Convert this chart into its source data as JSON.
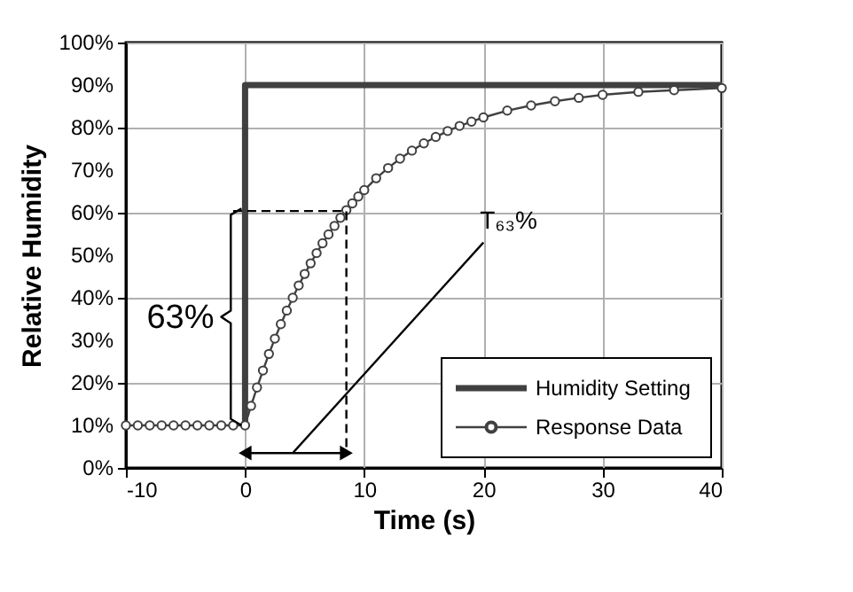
{
  "chart_data": {
    "type": "line",
    "xlabel": "Time (s)",
    "ylabel": "Relative Humidity",
    "xlim": [
      -10,
      40
    ],
    "xticks": [
      -10,
      0,
      10,
      20,
      30,
      40
    ],
    "ylim": [
      0,
      100
    ],
    "yticks": [
      {
        "value": 0,
        "label": "0%"
      },
      {
        "value": 10,
        "label": "10%"
      },
      {
        "value": 20,
        "label": "20%"
      },
      {
        "value": 30,
        "label": "30%"
      },
      {
        "value": 40,
        "label": "40%"
      },
      {
        "value": 50,
        "label": "50%"
      },
      {
        "value": 60,
        "label": "60%"
      },
      {
        "value": 70,
        "label": "70%"
      },
      {
        "value": 80,
        "label": "80%"
      },
      {
        "value": 90,
        "label": "90%"
      },
      {
        "value": 100,
        "label": "100%"
      }
    ],
    "grid": true,
    "legend": "bottom right",
    "line_style": "solid",
    "series": [
      {
        "name": "Humidity Setting",
        "color": "#404040",
        "marker": "none",
        "x": [
          0,
          0,
          40
        ],
        "values": [
          10,
          90,
          90
        ]
      },
      {
        "name": "Response Data",
        "color": "#404040",
        "marker": "circle",
        "x": [
          -10,
          -9,
          -8,
          -7,
          -6,
          -5,
          -4,
          -3,
          -2,
          -1,
          0,
          0.5,
          1,
          1.5,
          2,
          2.5,
          3,
          3.5,
          4,
          4.5,
          5,
          5.5,
          6,
          6.5,
          7,
          7.5,
          8,
          8.5,
          9,
          9.5,
          10,
          11,
          12,
          13,
          14,
          15,
          16,
          17,
          18,
          19,
          20,
          22,
          24,
          26,
          28,
          30,
          33,
          36,
          40
        ],
        "values": [
          10,
          10,
          10,
          10,
          10,
          10,
          10,
          10,
          10,
          10,
          10,
          14.6,
          18.9,
          22.9,
          26.8,
          30.4,
          33.8,
          37.0,
          40.0,
          42.9,
          45.6,
          48.1,
          50.5,
          52.8,
          54.9,
          56.9,
          58.8,
          60.6,
          62.2,
          63.8,
          65.3,
          68.1,
          70.5,
          72.7,
          74.6,
          76.3,
          77.8,
          79.2,
          80.4,
          81.4,
          82.4,
          84.0,
          85.2,
          86.2,
          87.0,
          87.7,
          88.4,
          88.8,
          89.3
        ]
      },
      {
        "color": "#000000",
        "marker": "none",
        "line_style": "dashed",
        "x": [
          -1,
          8.5,
          8.5
        ],
        "values": [
          60.4,
          60.4,
          3.5
        ]
      },
      {
        "color": "#000000",
        "marker": "none",
        "x": [
          -0.3,
          -1.2,
          -1.2,
          -2,
          -1.2,
          -1.2,
          -0.3
        ],
        "values": [
          61,
          59.5,
          37,
          35.5,
          34,
          11.5,
          10
        ]
      },
      {
        "color": "#000000",
        "marker": "triangle",
        "x": [
          0,
          8.5
        ],
        "values": [
          3.5,
          3.5
        ]
      },
      {
        "color": "#000000",
        "marker": "none",
        "x": [
          4,
          20
        ],
        "values": [
          3.5,
          53
        ]
      }
    ],
    "annotations": [
      "63%",
      "T₆₃%"
    ]
  }
}
